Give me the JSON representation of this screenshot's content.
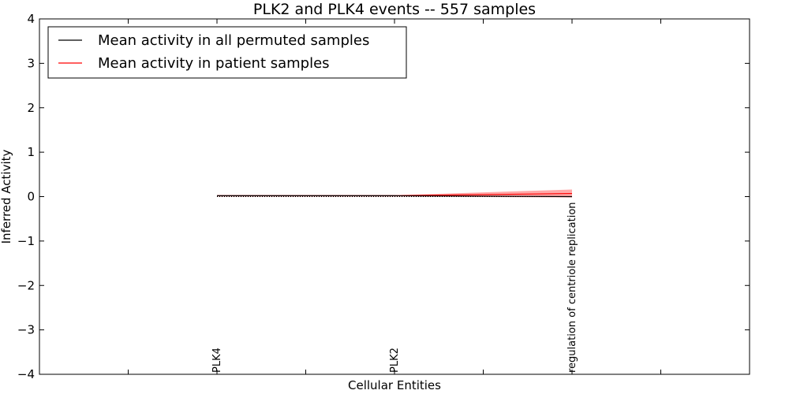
{
  "chart_data": {
    "type": "line",
    "title": "PLK2 and PLK4 events -- 557 samples",
    "xlabel": "Cellular Entities",
    "ylabel": "Inferred Activity",
    "ylim": [
      -4,
      4
    ],
    "yticks": [
      4,
      3,
      2,
      1,
      0,
      -1,
      -2,
      -3,
      -4
    ],
    "ytick_labels": [
      "4",
      "3",
      "2",
      "1",
      "0",
      "−1",
      "−2",
      "−3",
      "−4"
    ],
    "x_range": [
      0,
      4
    ],
    "xticks": [
      0.5,
      1,
      1.5,
      2,
      2.5,
      3,
      3.5
    ],
    "categories": [
      "PLK4",
      "PLK2",
      "regulation of centriole replication"
    ],
    "category_x": [
      1,
      2,
      3
    ],
    "grid": false,
    "legend_position": "top-left",
    "series": [
      {
        "name": "Mean activity in all permuted samples",
        "color": "#000000",
        "values": [
          0.02,
          0.02,
          0.0
        ]
      },
      {
        "name": "Mean activity in patient samples",
        "color": "#ff0000",
        "values": [
          0.02,
          0.02,
          0.07
        ],
        "band_lower": [
          0.0,
          0.0,
          -0.02
        ],
        "band_upper": [
          0.03,
          0.03,
          0.16
        ],
        "band_color": "#ff9999"
      }
    ],
    "zero_line": {
      "y": 0,
      "style": "dotted",
      "color": "#000000"
    }
  }
}
